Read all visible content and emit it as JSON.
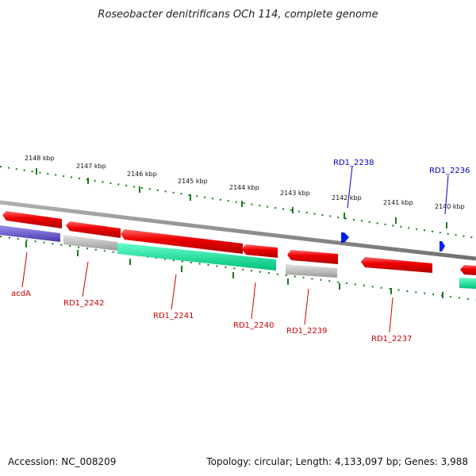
{
  "title": "Roseobacter denitrificans OCh 114, complete genome",
  "footer": {
    "accession": "Accession: NC_008209",
    "summary": "Topology: circular; Length: 4,133,097 bp; Genes: 3,988"
  },
  "colors": {
    "backbone": "#8a8a8a",
    "tick": "#1a7a1a",
    "red_gene": "#ee0000",
    "grey_gene": "#b8b8b8",
    "teal_gene": "#11ee99",
    "purple_gene": "#6655cc",
    "blue_gene": "#0022ee",
    "red_label": "#cc0000",
    "blue_label": "#0000cc"
  },
  "scale_labels": [
    {
      "kbp": 2148,
      "text": "2148 kbp"
    },
    {
      "kbp": 2147,
      "text": "2147 kbp"
    },
    {
      "kbp": 2146,
      "text": "2146 kbp"
    },
    {
      "kbp": 2145,
      "text": "2145 kbp"
    },
    {
      "kbp": 2144,
      "text": "2144 kbp"
    },
    {
      "kbp": 2143,
      "text": "2143 kbp"
    },
    {
      "kbp": 2142,
      "text": "2142 kbp"
    },
    {
      "kbp": 2141,
      "text": "2141 kbp"
    },
    {
      "kbp": 2140,
      "text": "2140 kbp"
    }
  ],
  "genes": [
    {
      "id": "acdA",
      "label": "acdA",
      "color": "red"
    },
    {
      "id": "RD1_2242",
      "label": "RD1_2242",
      "color": "red"
    },
    {
      "id": "RD1_2241",
      "label": "RD1_2241",
      "color": "red"
    },
    {
      "id": "RD1_2240",
      "label": "RD1_2240",
      "color": "red"
    },
    {
      "id": "RD1_2239",
      "label": "RD1_2239",
      "color": "red"
    },
    {
      "id": "RD1_2237",
      "label": "RD1_2237",
      "color": "red"
    },
    {
      "id": "RD1_2238",
      "label": "RD1_2238",
      "color": "blue"
    },
    {
      "id": "RD1_2236",
      "label": "RD1_2236",
      "color": "blue"
    }
  ]
}
